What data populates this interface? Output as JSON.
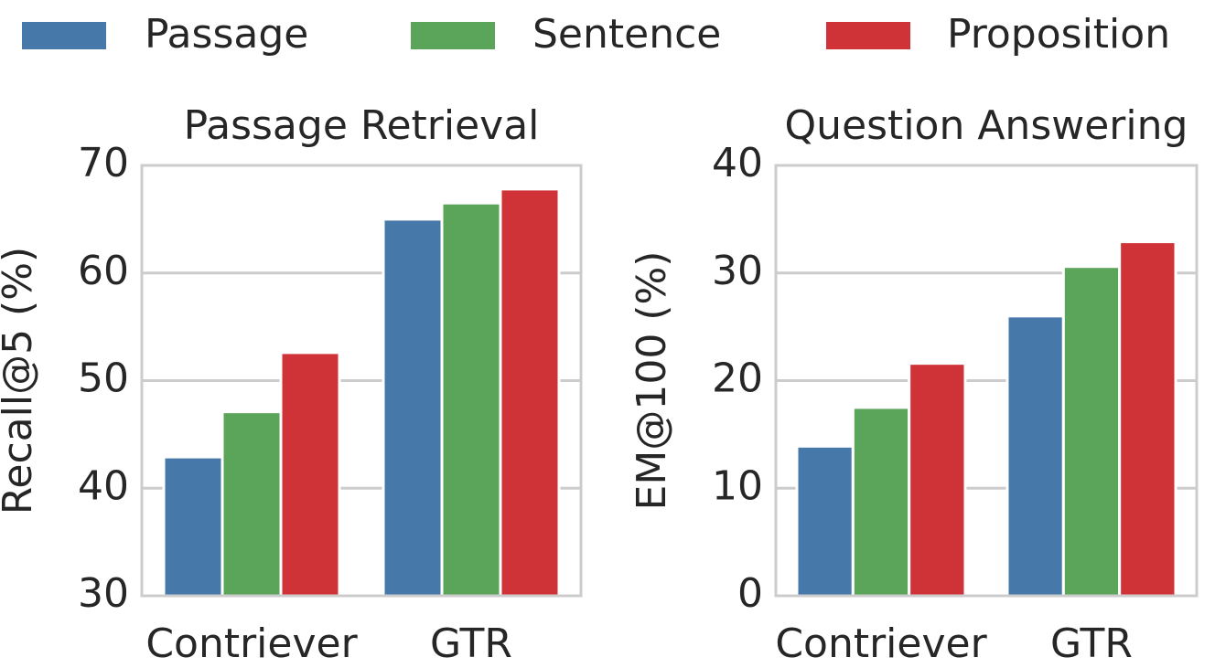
{
  "chart_data": [
    {
      "type": "bar",
      "title": "Passage Retrieval",
      "ylabel": "Recall@5 (%)",
      "categories": [
        "Contriever",
        "GTR"
      ],
      "series": [
        {
          "name": "Passage",
          "color": "#4679aa",
          "values": [
            42.9,
            65.0
          ]
        },
        {
          "name": "Sentence",
          "color": "#5ba55a",
          "values": [
            47.1,
            66.5
          ]
        },
        {
          "name": "Proposition",
          "color": "#d03337",
          "values": [
            52.6,
            67.8
          ]
        }
      ],
      "ylim": [
        30,
        70
      ],
      "yticks": [
        30,
        40,
        50,
        60,
        70
      ],
      "grid": true
    },
    {
      "type": "bar",
      "title": "Question Answering",
      "ylabel": "EM@100 (%)",
      "categories": [
        "Contriever",
        "GTR"
      ],
      "series": [
        {
          "color": "#4679aa",
          "values": [
            13.9,
            26.0
          ]
        },
        {
          "color": "#5ba55a",
          "values": [
            17.5,
            30.6
          ]
        },
        {
          "color": "#d03337",
          "values": [
            21.6,
            32.9
          ]
        }
      ],
      "ylim": [
        0,
        40
      ],
      "yticks": [
        0,
        10,
        20,
        30,
        40
      ],
      "grid": true
    }
  ]
}
